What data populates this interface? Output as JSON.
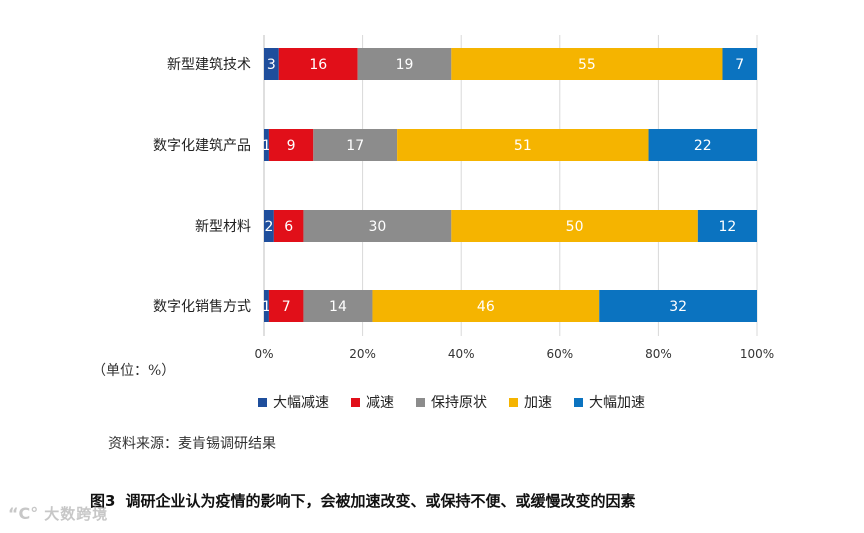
{
  "chart_data": {
    "type": "bar",
    "orientation": "horizontal",
    "stacked": true,
    "percent_stacked": true,
    "categories": [
      "新型建筑技术",
      "数字化建筑产品",
      "新型材料",
      "数字化销售方式"
    ],
    "series": [
      {
        "name": "大幅减速",
        "color": "#1f4e9c",
        "values": [
          3,
          1,
          2,
          1
        ]
      },
      {
        "name": "减速",
        "color": "#e10f19",
        "values": [
          16,
          9,
          6,
          7
        ]
      },
      {
        "name": "保持原状",
        "color": "#8c8c8c",
        "values": [
          19,
          17,
          30,
          14
        ]
      },
      {
        "name": "加速",
        "color": "#f5b400",
        "values": [
          55,
          51,
          50,
          46
        ]
      },
      {
        "name": "大幅加速",
        "color": "#0b73c0",
        "values": [
          7,
          22,
          12,
          32
        ]
      }
    ],
    "xlim": [
      0,
      100
    ],
    "xticks": [
      "0%",
      "20%",
      "40%",
      "60%",
      "80%",
      "100%"
    ],
    "grid": "vertical",
    "legend_position": "bottom"
  },
  "unit_note": "（单位：%）",
  "source_note": "资料来源：麦肯锡调研结果",
  "caption": {
    "label": "图3",
    "text": "调研企业认为疫情的影响下，会被加速改变、或保持不便、或缓慢改变的因素"
  },
  "watermark": {
    "mark": "“C°",
    "text": "大数跨境"
  }
}
